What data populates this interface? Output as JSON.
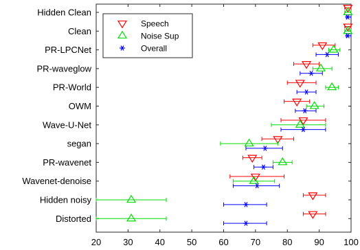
{
  "chart_data": {
    "type": "scatter",
    "categories": [
      "Hidden Clean",
      "Clean",
      "PR-LPCNet",
      "PR-waveglow",
      "PR-World",
      "OWM",
      "Wave-U-Net",
      "segan",
      "PR-wavenet",
      "Wavenet-denoise",
      "Hidden noisy",
      "Distorted"
    ],
    "xlim": [
      20,
      100
    ],
    "xticks": [
      20,
      30,
      40,
      50,
      60,
      70,
      80,
      90,
      100
    ],
    "grid": false,
    "legend_position": "top-left",
    "series": [
      {
        "name": "Speech",
        "marker": "triangle-down",
        "color": "#ff0000",
        "offset": -0.25,
        "values": [
          99,
          99,
          91,
          86,
          84,
          83,
          85,
          77,
          69,
          70,
          88,
          88
        ],
        "err_low": [
          98,
          98,
          88,
          82,
          80,
          79,
          78,
          72,
          66,
          62,
          85,
          85
        ],
        "err_high": [
          100,
          100,
          95,
          90,
          89,
          87,
          92,
          82,
          72,
          79,
          92,
          92
        ]
      },
      {
        "name": "Noise Sup",
        "marker": "triangle-up",
        "color": "#00dd00",
        "offset": 0,
        "values": [
          99,
          99,
          94.5,
          90.5,
          94,
          88.5,
          84,
          68,
          78.5,
          69.5,
          31,
          31
        ],
        "err_low": [
          98,
          98,
          93,
          88,
          92,
          86,
          75,
          59,
          75.5,
          63,
          20,
          20
        ],
        "err_high": [
          100,
          100,
          96.5,
          94,
          96,
          91.5,
          92,
          77,
          81.5,
          76,
          42,
          42
        ]
      },
      {
        "name": "Overall",
        "marker": "asterisk",
        "color": "#0000ff",
        "offset": 0.25,
        "values": [
          99,
          99,
          92.5,
          87.5,
          86,
          85.5,
          85,
          73,
          72.5,
          70.5,
          67,
          67
        ],
        "err_low": [
          98.5,
          98.5,
          89,
          84,
          83,
          82.5,
          78,
          67,
          69.5,
          63,
          60,
          60
        ],
        "err_high": [
          100,
          100,
          96,
          91,
          89,
          89,
          92,
          78.5,
          75.5,
          77.5,
          73.5,
          73.5
        ]
      }
    ]
  }
}
